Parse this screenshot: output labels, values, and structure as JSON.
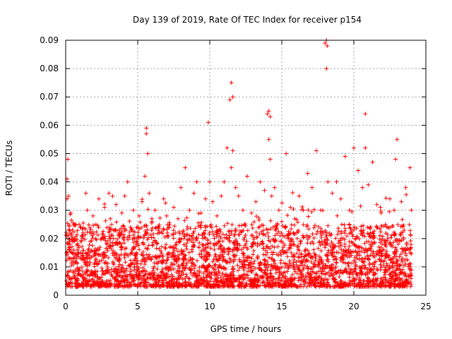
{
  "chart_data": {
    "type": "scatter",
    "title": "Day 139 of 2019, Rate Of TEC Index for receiver p154",
    "xlabel": "GPS time / hours",
    "ylabel": "ROTI / TECUs",
    "xlim": [
      0,
      25
    ],
    "ylim": [
      0,
      0.09
    ],
    "x_ticks": [
      0,
      5,
      10,
      15,
      20,
      25
    ],
    "x_tick_labels": [
      "0",
      "5",
      "10",
      "15",
      "20",
      "25"
    ],
    "y_ticks": [
      0,
      0.01,
      0.02,
      0.03,
      0.04,
      0.05,
      0.06,
      0.07,
      0.08,
      0.09
    ],
    "y_tick_labels": [
      "0",
      "0.01",
      "0.02",
      "0.03",
      "0.04",
      "0.05",
      "0.06",
      "0.07",
      "0.08",
      "0.09"
    ],
    "grid": true,
    "marker": "plus",
    "series_color": "#ff0000",
    "series": [
      {
        "name": "ROTI",
        "x": [
          0.05,
          0.1,
          0.15,
          0.2,
          0.3,
          0.35,
          0.5,
          0.6,
          0.8,
          1.0,
          1.2,
          1.4,
          1.5,
          1.7,
          1.9,
          2.1,
          2.3,
          2.5,
          2.7,
          2.9,
          3.1,
          3.3,
          3.5,
          3.7,
          3.9,
          4.1,
          4.3,
          4.5,
          4.7,
          4.9,
          5.1,
          5.3,
          5.5,
          5.6,
          5.7,
          5.8,
          6.0,
          6.2,
          6.5,
          6.8,
          7.0,
          7.2,
          7.5,
          7.8,
          8.0,
          8.3,
          8.6,
          8.9,
          9.1,
          9.4,
          9.7,
          10.0,
          10.2,
          10.5,
          10.8,
          11.0,
          11.2,
          11.4,
          11.5,
          11.6,
          11.8,
          12.0,
          12.3,
          12.6,
          12.9,
          13.2,
          13.5,
          13.8,
          14.0,
          14.1,
          14.2,
          14.3,
          14.5,
          14.8,
          15.0,
          15.3,
          15.6,
          15.9,
          16.2,
          16.5,
          16.8,
          17.1,
          17.4,
          17.7,
          18.0,
          18.1,
          18.2,
          18.5,
          18.8,
          19.1,
          19.4,
          19.7,
          20.0,
          20.3,
          20.6,
          20.8,
          21.0,
          21.3,
          21.6,
          21.9,
          22.2,
          22.5,
          22.8,
          23.0,
          23.3,
          23.6,
          23.9,
          24.0,
          0.1,
          3.0,
          5.6,
          9.9,
          11.5,
          11.6,
          14.1,
          14.2,
          18.1,
          18.15,
          20.8,
          22.9
        ],
        "y": [
          0.022,
          0.041,
          0.048,
          0.035,
          0.018,
          0.029,
          0.012,
          0.02,
          0.016,
          0.024,
          0.022,
          0.036,
          0.03,
          0.019,
          0.028,
          0.025,
          0.034,
          0.02,
          0.031,
          0.018,
          0.027,
          0.023,
          0.032,
          0.021,
          0.029,
          0.035,
          0.04,
          0.024,
          0.03,
          0.019,
          0.028,
          0.033,
          0.042,
          0.057,
          0.05,
          0.036,
          0.026,
          0.03,
          0.022,
          0.034,
          0.028,
          0.024,
          0.031,
          0.027,
          0.038,
          0.045,
          0.03,
          0.036,
          0.04,
          0.029,
          0.034,
          0.04,
          0.033,
          0.028,
          0.035,
          0.04,
          0.052,
          0.069,
          0.045,
          0.051,
          0.038,
          0.035,
          0.03,
          0.042,
          0.029,
          0.033,
          0.04,
          0.037,
          0.064,
          0.055,
          0.048,
          0.035,
          0.038,
          0.03,
          0.026,
          0.05,
          0.031,
          0.027,
          0.035,
          0.03,
          0.043,
          0.038,
          0.051,
          0.03,
          0.089,
          0.08,
          0.04,
          0.036,
          0.04,
          0.034,
          0.049,
          0.03,
          0.052,
          0.044,
          0.038,
          0.064,
          0.039,
          0.047,
          0.032,
          0.029,
          0.025,
          0.034,
          0.03,
          0.055,
          0.033,
          0.038,
          0.045,
          0.03,
          0.034,
          0.036,
          0.059,
          0.061,
          0.075,
          0.07,
          0.065,
          0.063,
          0.09,
          0.088,
          0.052,
          0.048
        ]
      }
    ],
    "dense_band": {
      "description_note": "",
      "x_range": [
        0,
        24
      ],
      "y_typical_min": 0.003,
      "y_typical_max": 0.025
    }
  }
}
